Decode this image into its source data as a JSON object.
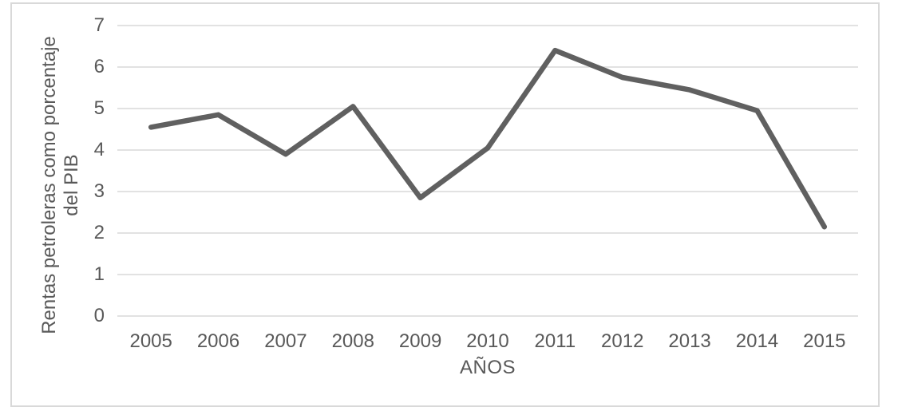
{
  "chart_data": {
    "type": "line",
    "categories": [
      "2005",
      "2006",
      "2007",
      "2008",
      "2009",
      "2010",
      "2011",
      "2012",
      "2013",
      "2014",
      "2015"
    ],
    "values": [
      4.55,
      4.85,
      3.9,
      5.05,
      2.85,
      4.05,
      6.4,
      5.75,
      5.45,
      4.95,
      2.15
    ],
    "series_name": "Rentas petroleras como porcentaje del PIB",
    "title": "",
    "xlabel": "AÑOS",
    "ylabel": "Rentas petroleras como porcentaje\ndel PIB",
    "ylim": [
      0,
      7
    ],
    "yticks": [
      0,
      1,
      2,
      3,
      4,
      5,
      6,
      7
    ],
    "grid": true,
    "legend": "none",
    "colors": {
      "line": "#606060",
      "gridline": "#d9d9d9",
      "frame_border": "#d9d9d9",
      "text": "#595959",
      "background": "#ffffff"
    }
  }
}
